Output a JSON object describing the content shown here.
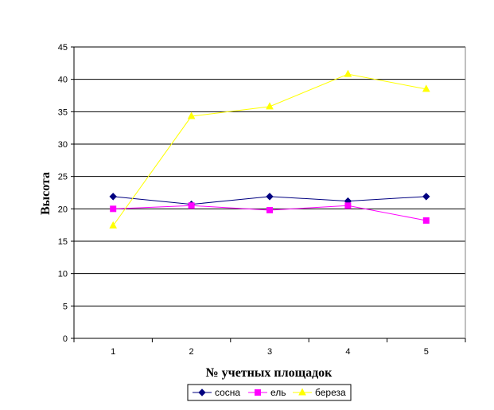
{
  "chart_data": {
    "type": "line",
    "title": "",
    "xlabel": "№ учетных площадок",
    "ylabel": "Высота",
    "categories": [
      "1",
      "2",
      "3",
      "4",
      "5"
    ],
    "ylim": [
      0,
      45
    ],
    "yticks": [
      0,
      5,
      10,
      15,
      20,
      25,
      30,
      35,
      40,
      45
    ],
    "grid": "horizontal",
    "legend_position": "bottom",
    "series": [
      {
        "name": "сосна",
        "values": [
          21.9,
          20.7,
          21.9,
          21.2,
          21.9
        ],
        "color": "#000080",
        "marker": "diamond"
      },
      {
        "name": "ель",
        "values": [
          20.0,
          20.5,
          19.8,
          20.5,
          18.2
        ],
        "color": "#ff00ff",
        "marker": "square"
      },
      {
        "name": "береза",
        "values": [
          17.4,
          34.3,
          35.8,
          40.8,
          38.5
        ],
        "color": "#ffff00",
        "marker": "triangle"
      }
    ]
  }
}
